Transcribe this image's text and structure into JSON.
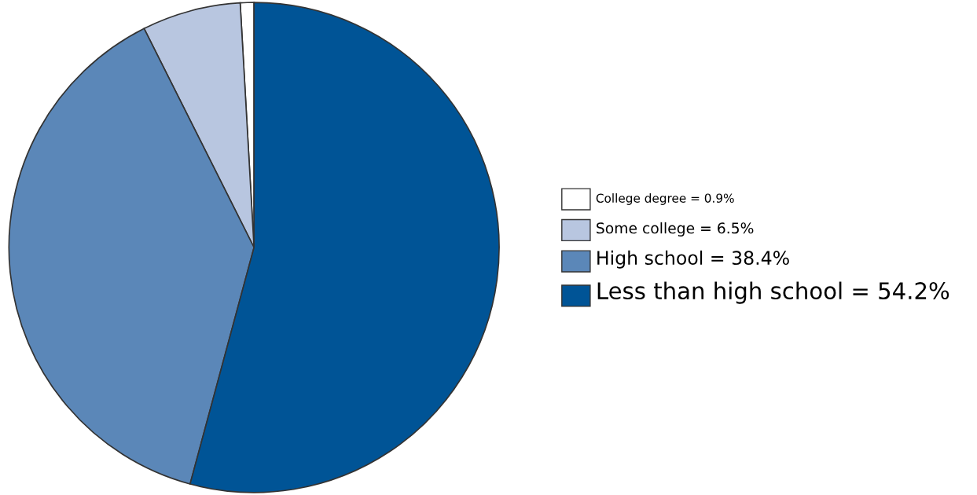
{
  "chart_data": {
    "type": "pie",
    "categories": [
      "College degree = 0.9%",
      "Some college = 6.5%",
      "High school = 38.4%",
      "Less than high school = 54.2%"
    ],
    "values": [
      0.9,
      6.5,
      38.4,
      54.2
    ],
    "colors": [
      "#ffffff",
      "#b8c6e0",
      "#5b87b8",
      "#005496"
    ],
    "legend": "right"
  }
}
